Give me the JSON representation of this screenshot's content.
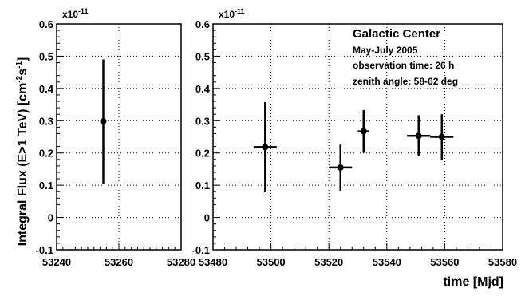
{
  "chart_data": [
    {
      "type": "scatter",
      "xlim": [
        53240,
        53280
      ],
      "ylim": [
        -0.1,
        0.6
      ],
      "y_multiplier": "x10",
      "y_multiplier_exp": "-11",
      "ylabel": "Integral Flux (E>1 TeV) [cm",
      "ylabel_sup1": "-2",
      "ylabel_mid": "s",
      "ylabel_sup2": "-1",
      "ylabel_end": "]",
      "xticks": [
        "53240",
        "53260",
        "53280"
      ],
      "yticks": [
        "-0.1",
        "0",
        "0.1",
        "0.2",
        "0.3",
        "0.4",
        "0.5",
        "0.6"
      ],
      "grid": true,
      "points": [
        {
          "x": 53255,
          "y": 0.298,
          "yerr_low": 0.195,
          "yerr_high": 0.192,
          "xerr": 0.6
        }
      ]
    },
    {
      "type": "scatter",
      "xlim": [
        53480,
        53580
      ],
      "ylim": [
        -0.1,
        0.6
      ],
      "y_multiplier": "x10",
      "y_multiplier_exp": "-11",
      "xlabel": "time [Mjd]",
      "xticks": [
        "53480",
        "53500",
        "53520",
        "53540",
        "53560",
        "53580"
      ],
      "yticks": [
        "-0.1",
        "0",
        "0.1",
        "0.2",
        "0.3",
        "0.4",
        "0.5",
        "0.6"
      ],
      "grid": true,
      "annotations": {
        "title": "Galactic Center",
        "line1": "May-July 2005",
        "line2": "observation time: 26 h",
        "line3": "zenith angle: 58-62 deg"
      },
      "points": [
        {
          "x": 53498,
          "y": 0.218,
          "yerr_low": 0.14,
          "yerr_high": 0.14,
          "xerr": 4
        },
        {
          "x": 53524,
          "y": 0.155,
          "yerr_low": 0.073,
          "yerr_high": 0.071,
          "xerr": 4
        },
        {
          "x": 53532,
          "y": 0.267,
          "yerr_low": 0.066,
          "yerr_high": 0.066,
          "xerr": 2
        },
        {
          "x": 53551,
          "y": 0.253,
          "yerr_low": 0.063,
          "yerr_high": 0.064,
          "xerr": 4
        },
        {
          "x": 53559,
          "y": 0.25,
          "yerr_low": 0.071,
          "yerr_high": 0.07,
          "xerr": 4
        }
      ]
    }
  ]
}
